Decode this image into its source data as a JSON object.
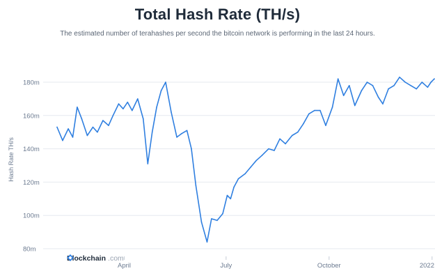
{
  "chart_data": {
    "type": "line",
    "title": "Total Hash Rate (TH/s)",
    "subtitle": "The estimated number of terahashes per second the bitcoin network is performing in the last 24 hours.",
    "ylabel": "Hash Rate TH/s",
    "xlabel": "",
    "ylim": [
      80,
      180
    ],
    "y_ticks": [
      "80m",
      "100m",
      "120m",
      "140m",
      "160m",
      "180m"
    ],
    "x_ticks": [
      "April",
      "July",
      "October",
      "2022"
    ],
    "grid": "horizontal",
    "line_color": "#2f7fe0",
    "x": [
      "2021-01-31",
      "2021-02-05",
      "2021-02-10",
      "2021-02-14",
      "2021-02-18",
      "2021-02-22",
      "2021-02-27",
      "2021-03-04",
      "2021-03-08",
      "2021-03-13",
      "2021-03-18",
      "2021-03-22",
      "2021-03-27",
      "2021-03-31",
      "2021-04-04",
      "2021-04-08",
      "2021-04-13",
      "2021-04-18",
      "2021-04-22",
      "2021-04-26",
      "2021-04-30",
      "2021-05-04",
      "2021-05-08",
      "2021-05-13",
      "2021-05-18",
      "2021-05-22",
      "2021-05-27",
      "2021-05-31",
      "2021-06-04",
      "2021-06-09",
      "2021-06-14",
      "2021-06-18",
      "2021-06-23",
      "2021-06-28",
      "2021-07-02",
      "2021-07-05",
      "2021-07-08",
      "2021-07-12",
      "2021-07-18",
      "2021-07-23",
      "2021-07-28",
      "2021-08-02",
      "2021-08-08",
      "2021-08-13",
      "2021-08-18",
      "2021-08-23",
      "2021-08-29",
      "2021-09-03",
      "2021-09-08",
      "2021-09-13",
      "2021-09-18",
      "2021-09-23",
      "2021-09-28",
      "2021-10-04",
      "2021-10-09",
      "2021-10-14",
      "2021-10-19",
      "2021-10-24",
      "2021-10-30",
      "2021-11-04",
      "2021-11-09",
      "2021-11-14",
      "2021-11-18",
      "2021-11-23",
      "2021-11-28",
      "2021-12-03",
      "2021-12-08",
      "2021-12-13",
      "2021-12-18",
      "2021-12-23",
      "2021-12-28",
      "2021-12-31",
      "2022-01-03"
    ],
    "series": [
      {
        "name": "",
        "values": [
          153,
          145,
          152,
          147,
          165,
          158,
          148,
          153,
          150,
          157,
          154,
          160,
          167,
          164,
          168,
          163,
          170,
          158,
          131,
          150,
          165,
          175,
          180,
          162,
          147,
          149,
          151,
          140,
          118,
          96,
          84,
          98,
          97,
          101,
          112,
          110,
          117,
          122,
          125,
          129,
          133,
          136,
          140,
          139,
          146,
          143,
          148,
          150,
          155,
          161,
          163,
          163,
          154,
          165,
          182,
          172,
          178,
          166,
          175,
          180,
          178,
          171,
          167,
          176,
          178,
          183,
          180,
          178,
          176,
          180,
          177,
          180,
          182
        ]
      }
    ]
  },
  "brand": {
    "name": "Blockchain",
    "domain": ".com"
  }
}
